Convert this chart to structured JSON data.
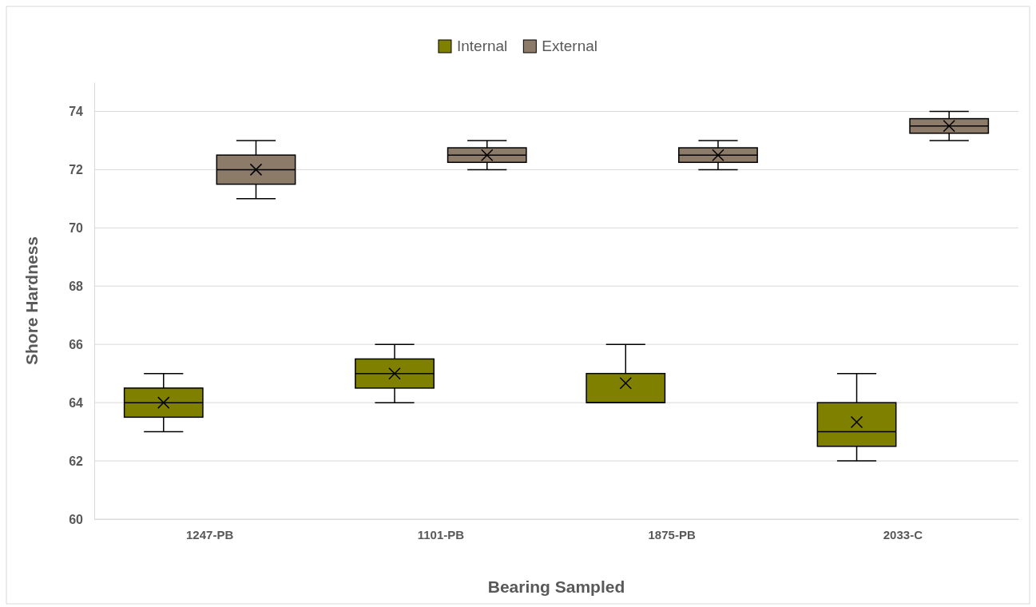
{
  "chart_data": {
    "type": "box",
    "xlabel": "Bearing Sampled",
    "ylabel": "Shore Hardness",
    "categories": [
      "1247-PB",
      "1101-PB",
      "1875-PB",
      "2033-C"
    ],
    "ylim": [
      60,
      75
    ],
    "yticks": [
      60,
      62,
      64,
      66,
      68,
      70,
      72,
      74
    ],
    "grid": "y",
    "legend": "top",
    "series": [
      {
        "name": "Internal",
        "color": "#808000",
        "boxes": [
          {
            "low": 63,
            "q1": 63.5,
            "median": 64,
            "q3": 64.5,
            "high": 65,
            "mean": 64
          },
          {
            "low": 64,
            "q1": 64.5,
            "median": 65,
            "q3": 65.5,
            "high": 66,
            "mean": 65
          },
          {
            "low": 64,
            "q1": 64,
            "median": 64,
            "q3": 65,
            "high": 66,
            "mean": 64.67
          },
          {
            "low": 62,
            "q1": 62.5,
            "median": 63,
            "q3": 64,
            "high": 65,
            "mean": 63.33
          }
        ]
      },
      {
        "name": "External",
        "color": "#8c7b69",
        "boxes": [
          {
            "low": 71,
            "q1": 71.5,
            "median": 72,
            "q3": 72.5,
            "high": 73,
            "mean": 72
          },
          {
            "low": 72,
            "q1": 72.25,
            "median": 72.5,
            "q3": 72.75,
            "high": 73,
            "mean": 72.5
          },
          {
            "low": 72,
            "q1": 72.25,
            "median": 72.5,
            "q3": 72.75,
            "high": 73,
            "mean": 72.5
          },
          {
            "low": 73,
            "q1": 73.25,
            "median": 73.5,
            "q3": 73.75,
            "high": 74,
            "mean": 73.5
          }
        ]
      }
    ]
  }
}
